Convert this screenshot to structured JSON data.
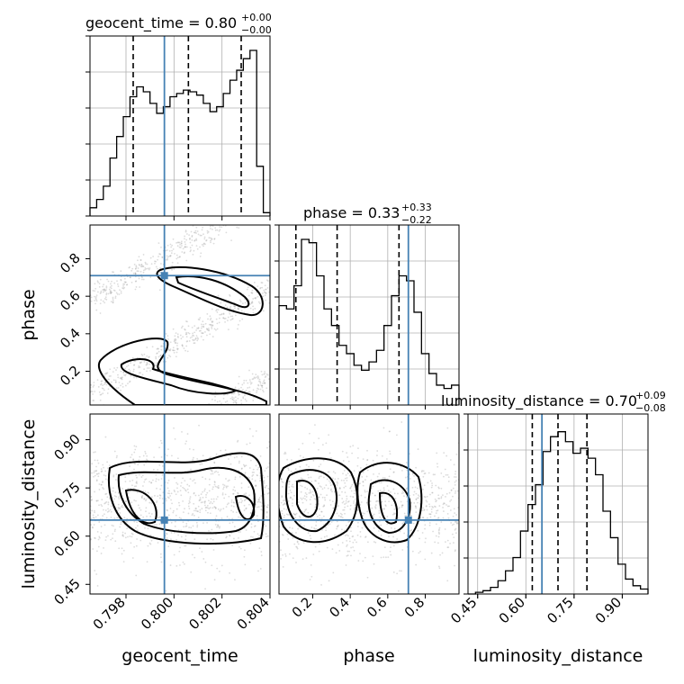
{
  "colors": {
    "truth": "#4682b4",
    "contour": "#000000",
    "grid": "#b0b0b0"
  },
  "chart_data": {
    "type": "corner",
    "parameters": [
      {
        "name": "geocent_time",
        "xlabel": "geocent_time",
        "ylabel": "",
        "title_main": "geocent_time = 0.80",
        "title_sup": "+0.00",
        "title_sub": "−0.00",
        "range": [
          0.7965,
          0.804
        ],
        "ticks": [
          0.798,
          0.8,
          0.802,
          0.804
        ],
        "ticklabels": [
          "0.798",
          "0.800",
          "0.802",
          "0.804"
        ],
        "truth": 0.7996,
        "quantiles": [
          0.7983,
          0.8006,
          0.8028
        ],
        "hist": [
          0.05,
          0.1,
          0.18,
          0.35,
          0.48,
          0.6,
          0.72,
          0.78,
          0.75,
          0.68,
          0.62,
          0.66,
          0.72,
          0.74,
          0.76,
          0.75,
          0.73,
          0.68,
          0.63,
          0.66,
          0.74,
          0.82,
          0.88,
          0.95,
          1.0,
          0.3,
          0.02
        ]
      },
      {
        "name": "phase",
        "xlabel": "phase",
        "ylabel": "phase",
        "title_main": "phase = 0.33",
        "title_sup": "+0.33",
        "title_sub": "−0.22",
        "range": [
          0.02,
          0.98
        ],
        "ticks": [
          0.2,
          0.4,
          0.6,
          0.8
        ],
        "ticklabels": [
          "0.2",
          "0.4",
          "0.6",
          "0.8"
        ],
        "truth": 0.71,
        "quantiles": [
          0.11,
          0.33,
          0.66
        ],
        "hist": [
          0.6,
          0.58,
          0.72,
          1.0,
          0.98,
          0.78,
          0.58,
          0.48,
          0.36,
          0.31,
          0.24,
          0.21,
          0.26,
          0.33,
          0.48,
          0.66,
          0.78,
          0.75,
          0.56,
          0.31,
          0.19,
          0.12,
          0.1,
          0.12
        ]
      },
      {
        "name": "luminosity_distance",
        "xlabel": "luminosity_distance",
        "ylabel": "luminosity_distance",
        "title_main": "luminosity_distance = 0.70",
        "title_sup": "+0.09",
        "title_sub": "−0.08",
        "range": [
          0.42,
          0.98
        ],
        "ticks": [
          0.45,
          0.6,
          0.75,
          0.9
        ],
        "ticklabels": [
          "0.45",
          "0.60",
          "0.75",
          "0.90"
        ],
        "truth": 0.65,
        "quantiles": [
          0.62,
          0.7,
          0.79
        ],
        "hist": [
          0.0,
          0.01,
          0.02,
          0.04,
          0.08,
          0.14,
          0.22,
          0.38,
          0.54,
          0.66,
          0.86,
          0.95,
          0.98,
          0.92,
          0.85,
          0.88,
          0.82,
          0.72,
          0.5,
          0.34,
          0.18,
          0.09,
          0.05,
          0.03
        ]
      }
    ]
  }
}
